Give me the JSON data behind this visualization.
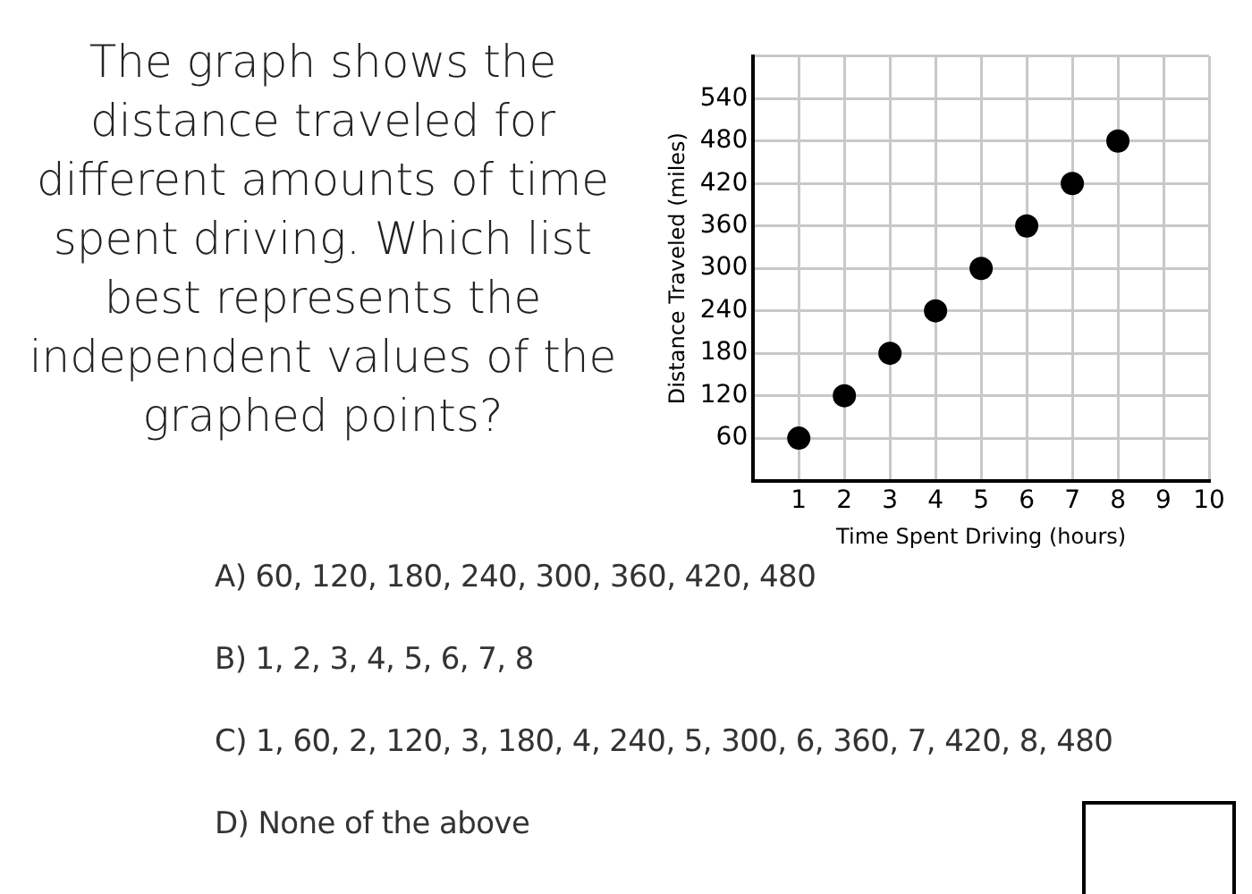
{
  "chart_data": {
    "type": "scatter",
    "title": "The graph shows the distance traveled for different amounts of time spent driving. Which list best represents the independent values of the graphed points?",
    "xlabel": "Time Spent Driving (hours)",
    "ylabel": "Distance Traveled (miles)",
    "x": [
      1,
      2,
      3,
      4,
      5,
      6,
      7,
      8
    ],
    "series": [
      {
        "color": "#000000",
        "values": [
          60,
          120,
          180,
          240,
          300,
          360,
          420,
          480
        ]
      }
    ],
    "xlim": [
      0,
      10
    ],
    "ylim": [
      0,
      600
    ],
    "xticks": [
      {
        "value": 0,
        "label": null
      },
      1,
      2,
      3,
      4,
      5,
      6,
      7,
      8,
      9,
      10
    ],
    "yticks": [
      {
        "value": 0,
        "label": null
      },
      60,
      120,
      180,
      240,
      300,
      360,
      420,
      480,
      540,
      {
        "value": 600,
        "label": null
      }
    ],
    "grid": true,
    "legend": false,
    "marker": "circle",
    "annotations": [
      "A) 60, 120, 180, 240, 300, 360, 420, 480",
      "B) 1, 2, 3, 4, 5, 6, 7, 8",
      "C) 1, 60, 2, 120, 3, 180, 4, 240, 5, 300, 6, 360, 7, 420, 8, 480",
      "D) None of the above"
    ]
  }
}
